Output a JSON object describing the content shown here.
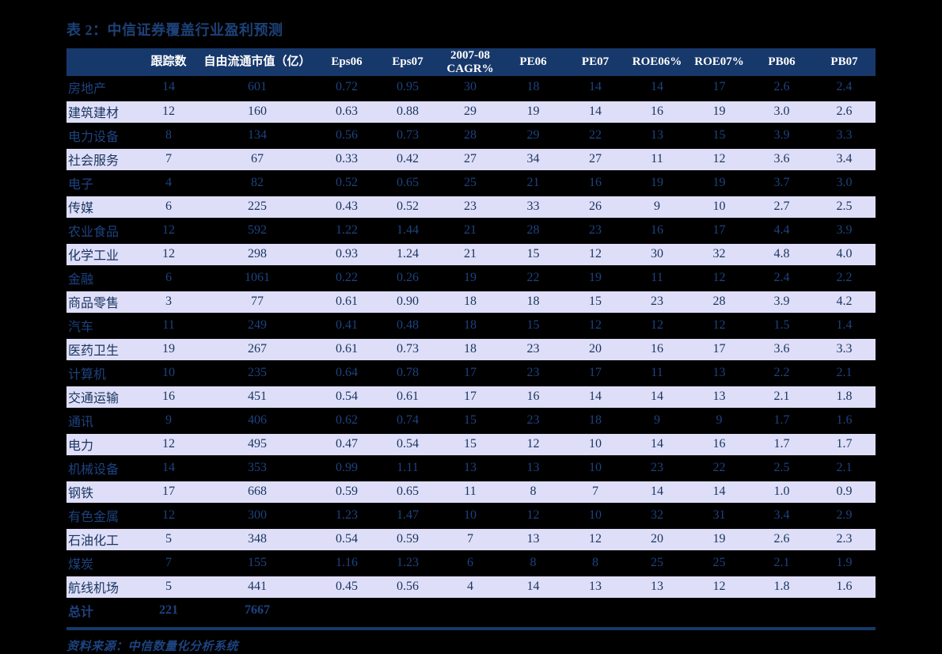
{
  "title": "表 2：中信证券覆盖行业盈利预测",
  "source_note": "资料来源：中信数量化分析系统",
  "colors": {
    "page_bg": "#000000",
    "header_bg": "#17386b",
    "header_text": "#ffffff",
    "row_light_bg": "#dfdef8",
    "text_on_light": "#17355e",
    "text_on_dark": "#1d4380",
    "title_color": "#1d4278",
    "divider_color": "#17386b"
  },
  "chart_data": {
    "type": "table",
    "title": "表 2：中信证券覆盖行业盈利预测",
    "columns": [
      "",
      "跟踪数",
      "自由流通市值（亿）",
      "Eps06",
      "Eps07",
      "2007-08\nCAGR%",
      "PE06",
      "PE07",
      "ROE06%",
      "ROE07%",
      "PB06",
      "PB07"
    ],
    "rows": [
      [
        "房地产",
        "14",
        "601",
        "0.72",
        "0.95",
        "30",
        "18",
        "14",
        "14",
        "17",
        "2.6",
        "2.4"
      ],
      [
        "建筑建材",
        "12",
        "160",
        "0.63",
        "0.88",
        "29",
        "19",
        "14",
        "16",
        "19",
        "3.0",
        "2.6"
      ],
      [
        "电力设备",
        "8",
        "134",
        "0.56",
        "0.73",
        "28",
        "29",
        "22",
        "13",
        "15",
        "3.9",
        "3.3"
      ],
      [
        "社会服务",
        "7",
        "67",
        "0.33",
        "0.42",
        "27",
        "34",
        "27",
        "11",
        "12",
        "3.6",
        "3.4"
      ],
      [
        "电子",
        "4",
        "82",
        "0.52",
        "0.65",
        "25",
        "21",
        "16",
        "19",
        "19",
        "3.7",
        "3.0"
      ],
      [
        "传媒",
        "6",
        "225",
        "0.43",
        "0.52",
        "23",
        "33",
        "26",
        "9",
        "10",
        "2.7",
        "2.5"
      ],
      [
        "农业食品",
        "12",
        "592",
        "1.22",
        "1.44",
        "21",
        "28",
        "23",
        "16",
        "17",
        "4.4",
        "3.9"
      ],
      [
        "化学工业",
        "12",
        "298",
        "0.93",
        "1.24",
        "21",
        "15",
        "12",
        "30",
        "32",
        "4.8",
        "4.0"
      ],
      [
        "金融",
        "6",
        "1061",
        "0.22",
        "0.26",
        "19",
        "22",
        "19",
        "11",
        "12",
        "2.4",
        "2.2"
      ],
      [
        "商品零售",
        "3",
        "77",
        "0.61",
        "0.90",
        "18",
        "18",
        "15",
        "23",
        "28",
        "3.9",
        "4.2"
      ],
      [
        "汽车",
        "11",
        "249",
        "0.41",
        "0.48",
        "18",
        "15",
        "12",
        "12",
        "12",
        "1.5",
        "1.4"
      ],
      [
        "医药卫生",
        "19",
        "267",
        "0.61",
        "0.73",
        "18",
        "23",
        "20",
        "16",
        "17",
        "3.6",
        "3.3"
      ],
      [
        "计算机",
        "10",
        "235",
        "0.64",
        "0.78",
        "17",
        "23",
        "17",
        "11",
        "13",
        "2.2",
        "2.1"
      ],
      [
        "交通运输",
        "16",
        "451",
        "0.54",
        "0.61",
        "17",
        "16",
        "14",
        "14",
        "13",
        "2.1",
        "1.8"
      ],
      [
        "通讯",
        "9",
        "406",
        "0.62",
        "0.74",
        "15",
        "23",
        "18",
        "9",
        "9",
        "1.7",
        "1.6"
      ],
      [
        "电力",
        "12",
        "495",
        "0.47",
        "0.54",
        "15",
        "12",
        "10",
        "14",
        "16",
        "1.7",
        "1.7"
      ],
      [
        "机械设备",
        "14",
        "353",
        "0.99",
        "1.11",
        "13",
        "13",
        "10",
        "23",
        "22",
        "2.5",
        "2.1"
      ],
      [
        "钢铁",
        "17",
        "668",
        "0.59",
        "0.65",
        "11",
        "8",
        "7",
        "14",
        "14",
        "1.0",
        "0.9"
      ],
      [
        "有色金属",
        "12",
        "300",
        "1.23",
        "1.47",
        "10",
        "12",
        "10",
        "32",
        "31",
        "3.4",
        "2.9"
      ],
      [
        "石油化工",
        "5",
        "348",
        "0.54",
        "0.59",
        "7",
        "13",
        "12",
        "20",
        "19",
        "2.6",
        "2.3"
      ],
      [
        "煤炭",
        "7",
        "155",
        "1.16",
        "1.23",
        "6",
        "8",
        "8",
        "25",
        "25",
        "2.1",
        "1.9"
      ],
      [
        "航线机场",
        "5",
        "441",
        "0.45",
        "0.56",
        "4",
        "14",
        "13",
        "13",
        "12",
        "1.8",
        "1.6"
      ]
    ],
    "total_row": [
      "总计",
      "221",
      "7667",
      "",
      "",
      "",
      "",
      "",
      "",
      "",
      "",
      ""
    ]
  }
}
